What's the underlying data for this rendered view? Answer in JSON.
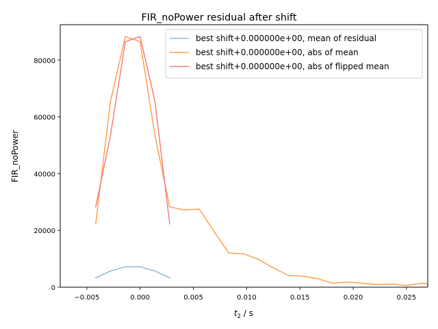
{
  "chart_data": {
    "type": "line",
    "title": "FIR_noPower residual after shift",
    "xlabel_var": "t",
    "xlabel_sub": "2",
    "xlabel_unit": " / s",
    "ylabel": "FIR_noPower",
    "xlim": [
      -0.0075,
      0.027
    ],
    "ylim": [
      0,
      92500
    ],
    "xticks": [
      -0.005,
      0.0,
      0.005,
      0.01,
      0.015,
      0.02,
      0.025
    ],
    "xtick_labels": [
      "−0.005",
      "0.000",
      "0.005",
      "0.010",
      "0.015",
      "0.020",
      "0.025"
    ],
    "yticks": [
      0,
      20000,
      40000,
      60000,
      80000
    ],
    "ytick_labels": [
      "0",
      "20000",
      "40000",
      "60000",
      "80000"
    ],
    "grid": false,
    "legend_position": "top-right",
    "series": [
      {
        "name": "best shift+0.000000e+00, mean of residual",
        "color": "#8ebad9",
        "x": [
          -0.00417,
          -0.00278,
          -0.00139,
          0.0,
          0.00139,
          0.00278
        ],
        "y": [
          3300,
          5700,
          7200,
          7200,
          5700,
          3300
        ]
      },
      {
        "name": "best shift+0.000000e+00, abs of mean",
        "color": "#ff9e4a",
        "x": [
          -0.00417,
          -0.00278,
          -0.00139,
          0.0,
          0.00139,
          0.00278,
          0.00417,
          0.00556,
          0.00694,
          0.00833,
          0.00972,
          0.01111,
          0.0125,
          0.01389,
          0.01528,
          0.01667,
          0.01806,
          0.01944,
          0.02083,
          0.02222,
          0.02361,
          0.025,
          0.02639,
          0.02778
        ],
        "y": [
          22300,
          65500,
          88300,
          86500,
          53500,
          28300,
          27200,
          27500,
          19600,
          12000,
          11800,
          9800,
          6800,
          4200,
          3900,
          3000,
          1400,
          1800,
          1400,
          900,
          1100,
          600,
          1400,
          900
        ]
      },
      {
        "name": "best shift+0.000000e+00, abs of flipped mean",
        "color": "#f07f80",
        "x": [
          -0.00417,
          -0.00278,
          -0.00139,
          0.0,
          0.00139,
          0.00278
        ],
        "y": [
          28300,
          53500,
          86500,
          88300,
          65500,
          22300
        ]
      }
    ]
  }
}
